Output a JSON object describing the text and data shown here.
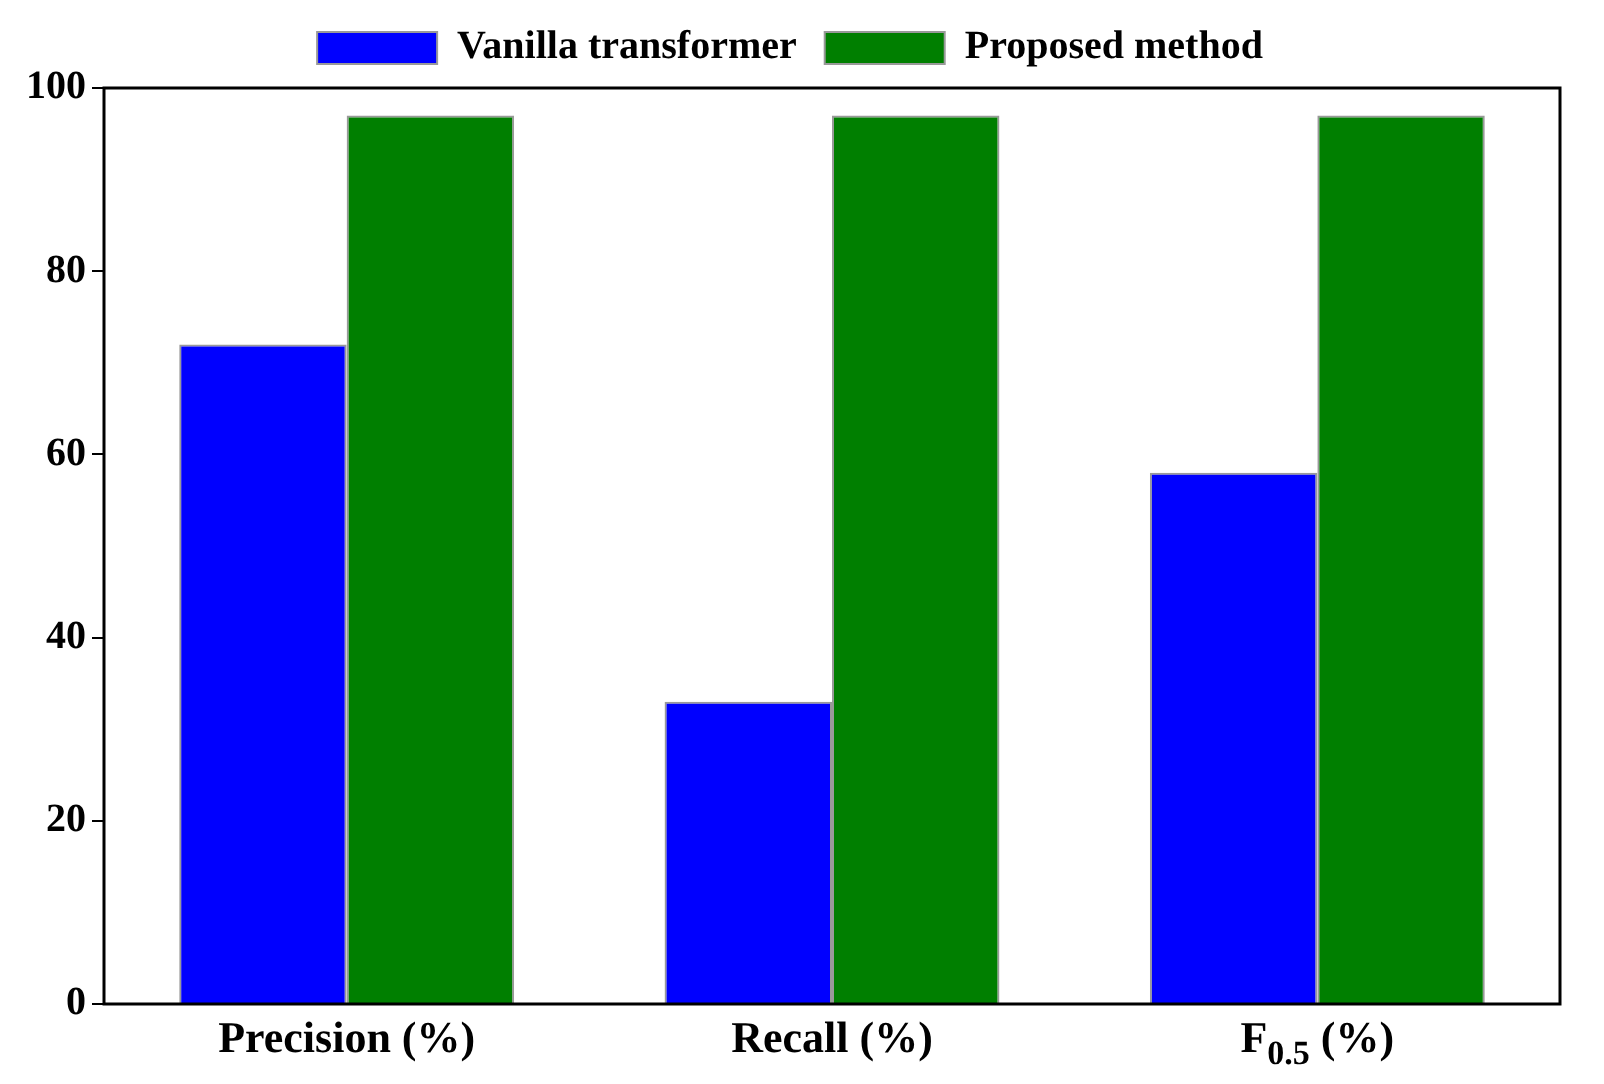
{
  "chart_data": {
    "type": "bar",
    "categories": [
      "Precision (%)",
      "Recall (%)",
      "F$_{0.5}$ (%)"
    ],
    "series": [
      {
        "name": "Vanilla transformer",
        "color": "#0000ff",
        "values": [
          72,
          33,
          58
        ]
      },
      {
        "name": "Proposed method",
        "color": "#007f00",
        "values": [
          97,
          97,
          97
        ]
      }
    ],
    "ylim": [
      0,
      100
    ],
    "yticks": [
      0,
      20,
      40,
      60,
      80,
      100
    ],
    "grid": false,
    "legend": "top"
  }
}
